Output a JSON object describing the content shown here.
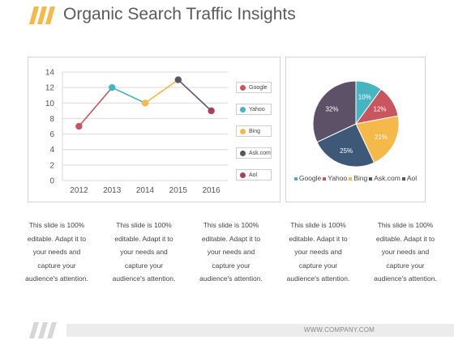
{
  "title": "Organic Search Traffic Insights",
  "accent_color": "#f5b94a",
  "chart_data": [
    {
      "type": "line",
      "x": [
        "2012",
        "2013",
        "2014",
        "2015",
        "2016"
      ],
      "yticks": [
        "0",
        "2",
        "4",
        "6",
        "8",
        "10",
        "12",
        "14"
      ],
      "ylim": [
        0,
        14
      ],
      "grid": true,
      "legend_position": "right",
      "points": [
        {
          "x": "2012",
          "y": 7,
          "color": "#c9555e"
        },
        {
          "x": "2013",
          "y": 12,
          "color": "#47b5c1"
        },
        {
          "x": "2014",
          "y": 10,
          "color": "#f5b94a"
        },
        {
          "x": "2015",
          "y": 13,
          "color": "#5d5168"
        },
        {
          "x": "2016",
          "y": 9,
          "color": "#a3415e"
        }
      ],
      "legend": [
        {
          "label": "Google",
          "color": "#c9555e"
        },
        {
          "label": "Yahoo",
          "color": "#47b5c1"
        },
        {
          "label": "Bing",
          "color": "#f5b94a"
        },
        {
          "label": "Ask.com",
          "color": "#5d5168"
        },
        {
          "label": "Aol",
          "color": "#a3415e"
        }
      ]
    },
    {
      "type": "pie",
      "legend_position": "bottom",
      "slices": [
        {
          "name": "Google",
          "value": 10,
          "label": "10%",
          "color": "#47b5c1"
        },
        {
          "name": "Yahoo",
          "value": 12,
          "label": "12%",
          "color": "#c9555e"
        },
        {
          "name": "Bing",
          "value": 21,
          "label": "21%",
          "color": "#f5b94a"
        },
        {
          "name": "Ask.com",
          "value": 25,
          "label": "25%",
          "color": "#3e5877"
        },
        {
          "name": "Aol",
          "value": 32,
          "label": "32%",
          "color": "#5d5168"
        }
      ]
    }
  ],
  "captions": [
    "This slide is 100% editable. Adapt it to your needs and capture your audience's attention.",
    "This slide is 100% editable. Adapt it to your needs and capture your audience's attention.",
    "This slide is 100% editable. Adapt it to your needs and capture your audience's attention.",
    "This slide is 100% editable. Adapt it to your needs and capture your audience's attention.",
    "This slide is 100% editable. Adapt it to your needs and capture your audience's attention."
  ],
  "footer": "WWW.COMPANY.COM"
}
